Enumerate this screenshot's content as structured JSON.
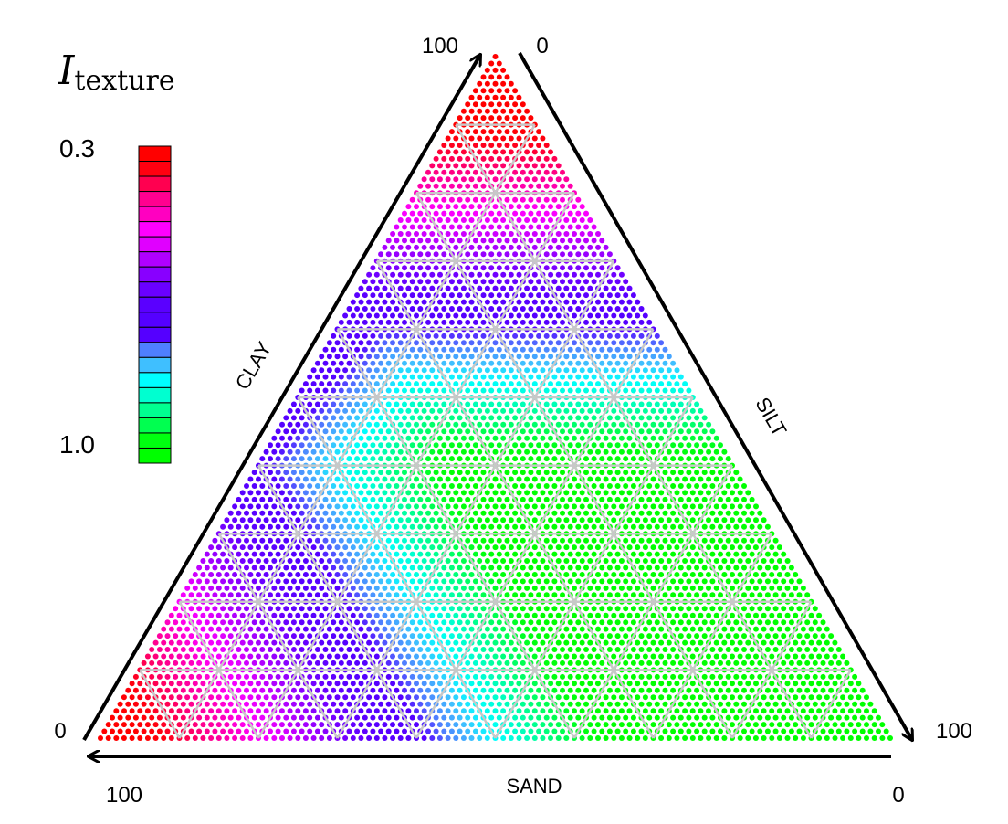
{
  "chart_data": {
    "type": "ternary",
    "title_main": "I",
    "title_sub": "texture",
    "axes": {
      "clay": {
        "label": "CLAY",
        "min_label": "0",
        "max_label": "100",
        "range": [
          0,
          100
        ]
      },
      "silt": {
        "label": "SILT",
        "min_label": "0",
        "max_label": "100",
        "range": [
          0,
          100
        ]
      },
      "sand": {
        "label": "SAND",
        "min_label": "0",
        "max_label": "100",
        "range": [
          0,
          100
        ]
      }
    },
    "grid": true,
    "grid_step": 10,
    "colorbar": {
      "position": "top-left",
      "top_label": "0.3",
      "bottom_label": "1.0",
      "range": [
        0.3,
        1.0
      ],
      "colors": [
        "#ff0000",
        "#ff0010",
        "#ff0050",
        "#ff0090",
        "#ff00c0",
        "#ff00ff",
        "#e000ff",
        "#b000ff",
        "#8800ff",
        "#6a00ff",
        "#5a00ff",
        "#5500ff",
        "#5500ff",
        "#4f7fff",
        "#3fbfff",
        "#00ffff",
        "#00ffd0",
        "#00ff90",
        "#00ff50",
        "#00ff10",
        "#00ff00"
      ]
    }
  }
}
